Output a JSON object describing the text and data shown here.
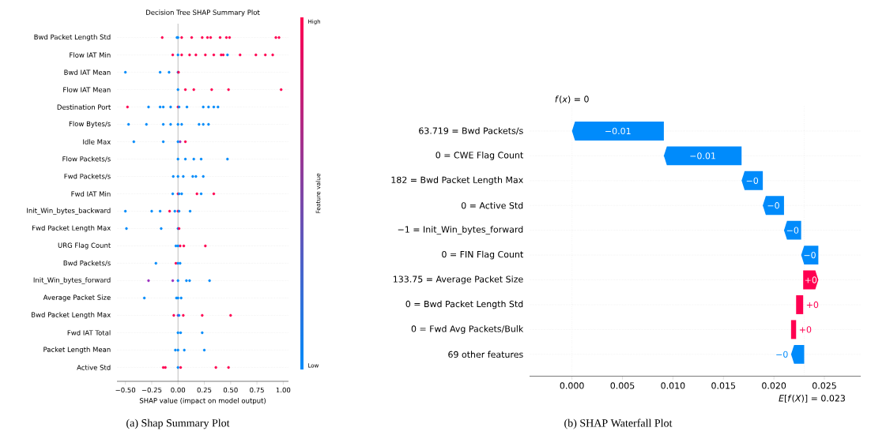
{
  "chart_data": [
    {
      "type": "scatter",
      "orientation": "horizontal",
      "title": "Decision Tree SHAP Summary Plot",
      "xlabel": "SHAP value (impact on model output)",
      "clabel": "Feature value",
      "categories": [
        "Bwd Packet Length Std",
        "Flow IAT Min",
        "Bwd IAT Mean",
        "Flow IAT Mean",
        "Destination Port",
        "Flow Bytes/s",
        "Idle Max",
        "Flow Packets/s",
        "Fwd Packets/s",
        "Fwd IAT Min",
        "Init_Win_bytes_backward",
        "Fwd Packet Length Max",
        "URG Flag Count",
        "Bwd Packets/s",
        "Init_Win_bytes_forward",
        "Average Packet Size",
        "Bwd Packet Length Max",
        "Fwd IAT Total",
        "Packet Length Mean",
        "Active Std"
      ],
      "series": [
        {
          "x": [
            "Bwd Packet Length Std",
            "Bwd Packet Length Std",
            "Bwd Packet Length Std",
            "Bwd Packet Length Std",
            "Bwd Packet Length Std",
            "Bwd Packet Length Std",
            "Bwd Packet Length Std",
            "Bwd Packet Length Std",
            "Bwd Packet Length Std",
            "Bwd Packet Length Std",
            "Bwd Packet Length Std",
            "Bwd Packet Length Std",
            "Bwd Packet Length Std"
          ],
          "values": [
            -0.15,
            0.035,
            0.13,
            0.23,
            0.28,
            0.31,
            0.4,
            0.46,
            0.49,
            0.93,
            0.96,
            0,
            -0.01
          ],
          "colors": [
            "#ff0051",
            "#ff0051",
            "#ff0051",
            "#ff0051",
            "#ff0051",
            "#ff0051",
            "#ff0051",
            "#ff0051",
            "#ff0051",
            "#ff0051",
            "#ff0051",
            "#008bfb",
            "#008bfb"
          ]
        },
        {
          "x": [
            "Flow IAT Min",
            "Flow IAT Min",
            "Flow IAT Min",
            "Flow IAT Min",
            "Flow IAT Min",
            "Flow IAT Min",
            "Flow IAT Min",
            "Flow IAT Min",
            "Flow IAT Min",
            "Flow IAT Min",
            "Flow IAT Min",
            "Flow IAT Min",
            "Flow IAT Min",
            "Flow IAT Min"
          ],
          "values": [
            -0.05,
            0.035,
            0.11,
            0.17,
            0.26,
            0.34,
            0.41,
            0.43,
            0.59,
            0.74,
            0.83,
            0.9,
            0.47,
            0
          ],
          "colors": [
            "#ff0051",
            "#ff0051",
            "#ff0051",
            "#ff0051",
            "#ff0051",
            "#ff0051",
            "#ff0051",
            "#ff0051",
            "#ff0051",
            "#ff0051",
            "#ff0051",
            "#ff0051",
            "#008bfb",
            "#008bfb"
          ]
        },
        {
          "x": [
            "Bwd IAT Mean",
            "Bwd IAT Mean",
            "Bwd IAT Mean",
            "Bwd IAT Mean",
            "Bwd IAT Mean"
          ],
          "values": [
            -0.5,
            -0.17,
            -0.085,
            0,
            0.005
          ],
          "colors": [
            "#008bfb",
            "#008bfb",
            "#008bfb",
            "#008bfb",
            "#ff0051"
          ]
        },
        {
          "x": [
            "Flow IAT Mean",
            "Flow IAT Mean",
            "Flow IAT Mean",
            "Flow IAT Mean",
            "Flow IAT Mean",
            "Flow IAT Mean",
            "Flow IAT Mean"
          ],
          "values": [
            0.07,
            0.15,
            0.32,
            0.48,
            0.98,
            null,
            0
          ],
          "colors": [
            "#ff0051",
            "#ff0051",
            "#ff0051",
            "#ff0051",
            "#ff0051",
            "#ff0051",
            "#008bfb"
          ]
        },
        {
          "x": [
            "Destination Port",
            "Destination Port",
            "Destination Port",
            "Destination Port",
            "Destination Port",
            "Destination Port",
            "Destination Port",
            "Destination Port",
            "Destination Port",
            "Destination Port",
            "Destination Port",
            "Destination Port"
          ],
          "values": [
            -0.48,
            0,
            -0.28,
            -0.17,
            -0.14,
            -0.07,
            0.085,
            0.24,
            0.29,
            0.34,
            0.38,
            0.01
          ],
          "colors": [
            "#ff0051",
            "#ff0051",
            "#008bfb",
            "#008bfb",
            "#008bfb",
            "#008bfb",
            "#008bfb",
            "#008bfb",
            "#008bfb",
            "#008bfb",
            "#008bfb",
            "#008bfb"
          ]
        },
        {
          "x": [
            "Flow Bytes/s",
            "Flow Bytes/s",
            "Flow Bytes/s",
            "Flow Bytes/s",
            "Flow Bytes/s",
            "Flow Bytes/s",
            "Flow Bytes/s",
            "Flow Bytes/s",
            "Flow Bytes/s"
          ],
          "values": [
            -0.47,
            -0.3,
            -0.14,
            -0.07,
            0.035,
            0.2,
            0.24,
            0.29,
            0
          ],
          "color": "#008bfb"
        },
        {
          "x": [
            "Idle Max",
            "Idle Max",
            "Idle Max",
            "Idle Max",
            "Idle Max"
          ],
          "values": [
            -0.42,
            -0.14,
            0.02,
            0.07,
            0
          ],
          "colors": [
            "#008bfb",
            "#008bfb",
            "#9b30c0",
            "#ff0051",
            "#008bfb"
          ]
        },
        {
          "x": [
            "Flow Packets/s",
            "Flow Packets/s",
            "Flow Packets/s",
            "Flow Packets/s",
            "Flow Packets/s"
          ],
          "values": [
            0.07,
            0.15,
            0.22,
            0.47,
            0
          ],
          "color": "#008bfb"
        },
        {
          "x": [
            "Fwd Packets/s",
            "Fwd Packets/s",
            "Fwd Packets/s",
            "Fwd Packets/s",
            "Fwd Packets/s",
            "Fwd Packets/s"
          ],
          "values": [
            -0.045,
            0.05,
            0.14,
            0.17,
            0.24,
            0
          ],
          "color": "#008bfb"
        },
        {
          "x": [
            "Fwd IAT Min",
            "Fwd IAT Min",
            "Fwd IAT Min",
            "Fwd IAT Min",
            "Fwd IAT Min",
            "Fwd IAT Min",
            "Fwd IAT Min"
          ],
          "values": [
            -0.05,
            0.035,
            0.22,
            0.18,
            0.34,
            0,
            0.01
          ],
          "colors": [
            "#008bfb",
            "#008bfb",
            "#008bfb",
            "#ff0051",
            "#ff0051",
            "#ff0051",
            "#008bfb"
          ]
        },
        {
          "x": [
            "Init_Win_bytes_backward",
            "Init_Win_bytes_backward",
            "Init_Win_bytes_backward",
            "Init_Win_bytes_backward",
            "Init_Win_bytes_backward",
            "Init_Win_bytes_backward",
            "Init_Win_bytes_backward",
            "Init_Win_bytes_backward"
          ],
          "values": [
            -0.5,
            -0.25,
            -0.17,
            -0.03,
            0.115,
            -0.08,
            0,
            0.01
          ],
          "colors": [
            "#008bfb",
            "#008bfb",
            "#008bfb",
            "#008bfb",
            "#008bfb",
            "#ff0051",
            "#ff0051",
            "#008bfb"
          ]
        },
        {
          "x": [
            "Fwd Packet Length Max",
            "Fwd Packet Length Max",
            "Fwd Packet Length Max",
            "Fwd Packet Length Max"
          ],
          "values": [
            -0.49,
            -0.16,
            0,
            0.01
          ],
          "colors": [
            "#008bfb",
            "#008bfb",
            "#008bfb",
            "#ff0051"
          ]
        },
        {
          "x": [
            "URG Flag Count",
            "URG Flag Count",
            "URG Flag Count",
            "URG Flag Count",
            "URG Flag Count"
          ],
          "values": [
            -0.02,
            0.02,
            0.055,
            0.26,
            0
          ],
          "colors": [
            "#008bfb",
            "#ff0051",
            "#ff0051",
            "#ff0051",
            "#008bfb"
          ]
        },
        {
          "x": [
            "Bwd Packets/s",
            "Bwd Packets/s",
            "Bwd Packets/s",
            "Bwd Packets/s"
          ],
          "values": [
            -0.21,
            -0.02,
            0.02,
            0
          ],
          "colors": [
            "#008bfb",
            "#ff0051",
            "#008bfb",
            "#008bfb"
          ]
        },
        {
          "x": [
            "Init_Win_bytes_forward",
            "Init_Win_bytes_forward",
            "Init_Win_bytes_forward",
            "Init_Win_bytes_forward",
            "Init_Win_bytes_forward",
            "Init_Win_bytes_forward"
          ],
          "values": [
            -0.28,
            -0.05,
            0.08,
            0.11,
            0.3,
            0
          ],
          "colors": [
            "#9b30c0",
            "#9b30c0",
            "#008bfb",
            "#008bfb",
            "#008bfb",
            "#008bfb"
          ]
        },
        {
          "x": [
            "Average Packet Size",
            "Average Packet Size",
            "Average Packet Size",
            "Average Packet Size"
          ],
          "values": [
            -0.32,
            -0.015,
            0.03,
            0
          ],
          "color": "#008bfb"
        },
        {
          "x": [
            "Bwd Packet Length Max",
            "Bwd Packet Length Max",
            "Bwd Packet Length Max",
            "Bwd Packet Length Max",
            "Bwd Packet Length Max",
            "Bwd Packet Length Max"
          ],
          "values": [
            -0.04,
            0.05,
            0.23,
            0.5,
            0,
            0.01
          ],
          "colors": [
            "#ff0051",
            "#ff0051",
            "#ff0051",
            "#ff0051",
            "#9b30c0",
            "#008bfb"
          ]
        },
        {
          "x": [
            "Fwd IAT Total",
            "Fwd IAT Total",
            "Fwd IAT Total"
          ],
          "values": [
            0.025,
            0.23,
            0
          ],
          "color": "#008bfb"
        },
        {
          "x": [
            "Packet Length Mean",
            "Packet Length Mean",
            "Packet Length Mean",
            "Packet Length Mean"
          ],
          "values": [
            -0.025,
            0.06,
            0.25,
            0
          ],
          "color": "#008bfb"
        },
        {
          "x": [
            "Active Std",
            "Active Std",
            "Active Std",
            "Active Std",
            "Active Std",
            "Active Std"
          ],
          "values": [
            -0.14,
            -0.12,
            0.025,
            0.36,
            0.48,
            0
          ],
          "colors": [
            "#ff0051",
            "#ff0051",
            "#ff0051",
            "#ff0051",
            "#ff0051",
            "#008bfb"
          ]
        }
      ],
      "xlim": [
        -0.58,
        1.05
      ],
      "xticks": [
        {
          "value": -0.5,
          "label": "−0.50"
        },
        {
          "value": -0.25,
          "label": "−0.25"
        },
        {
          "value": 0,
          "label": "0.00"
        },
        {
          "value": 0.25,
          "label": "0.25"
        },
        {
          "value": 0.5,
          "label": "0.50"
        },
        {
          "value": 0.75,
          "label": "0.75"
        },
        {
          "value": 1,
          "label": "1.00"
        }
      ],
      "ref_lines": [
        {
          "axis": "x",
          "value": 0,
          "color": "#555555",
          "line_style": "solid"
        }
      ],
      "grid": "y",
      "marker": "circle",
      "annotations": [
        "High",
        "Low",
        "(a) Shap Summary Plot"
      ]
    },
    {
      "type": "bar",
      "orientation": "horizontal",
      "categories": [
        "63.719 =  Bwd Packets/s",
        "0 =  CWE Flag Count",
        "182 =  Bwd Packet Length Max",
        "0 =  Active Std",
        "−1 =  Init_Win_bytes_forward",
        "0 =  FIN Flag Count",
        "133.75 =  Average Packet Size",
        "0 =  Bwd Packet Length Std",
        "0 =  Fwd Avg Packets/Bulk",
        "69 other features"
      ],
      "base": [
        0.0091,
        0.0168,
        0.0189,
        0.021,
        0.0227,
        0.0244,
        0.0229,
        0.0222,
        0.0217,
        0.023
      ],
      "values": [
        -0.0091,
        -0.0077,
        -0.0021,
        -0.0021,
        -0.0017,
        -0.0017,
        0.0015,
        0.0007,
        0.0005,
        -0.0013
      ],
      "colors": [
        "#008bfb",
        "#008bfb",
        "#008bfb",
        "#008bfb",
        "#008bfb",
        "#008bfb",
        "#ff0051",
        "#ff0051",
        "#ff0051",
        "#008bfb"
      ],
      "value_labels": [
        "−0.01",
        "−0.01",
        "−0",
        "−0",
        "−0",
        "−0",
        "+0",
        "+0",
        "+0",
        "−0"
      ],
      "xlim": [
        -0.0042,
        0.0286
      ],
      "xticks": [
        {
          "value": 0,
          "label": "0.000"
        },
        {
          "value": 0.005,
          "label": "0.005"
        },
        {
          "value": 0.01,
          "label": "0.010"
        },
        {
          "value": 0.015,
          "label": "0.015"
        },
        {
          "value": 0.02,
          "label": "0.020"
        },
        {
          "value": 0.025,
          "label": "0.025"
        }
      ],
      "ref_lines": [
        {
          "axis": "x",
          "value": 0,
          "label": "*f*(*x*) = 0",
          "color": "#bbbbbb",
          "line_style": "dotted"
        },
        {
          "axis": "x",
          "value": 0.023,
          "label": "*E*[*f*(*X*)] = 0.023",
          "color": "#bbbbbb",
          "line_style": "dotted"
        }
      ],
      "grid": "y",
      "annotations": [
        "(b) SHAP Waterfall Plot"
      ]
    }
  ]
}
